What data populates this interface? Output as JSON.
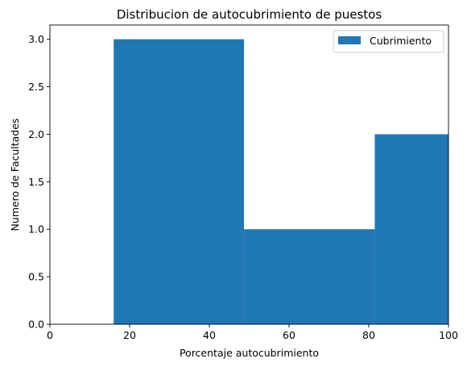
{
  "chart_data": {
    "type": "bar",
    "title": "Distribucion de autocubrimiento de puestos",
    "xlabel": "Porcentaje autocubrimiento",
    "ylabel": "Numero de Facultades",
    "xlim": [
      0,
      100
    ],
    "ylim": [
      0,
      3.15
    ],
    "xticks": [
      0,
      20,
      40,
      60,
      80,
      100
    ],
    "xtick_labels": [
      "0",
      "20",
      "40",
      "60",
      "80",
      "100"
    ],
    "yticks": [
      0.0,
      0.5,
      1.0,
      1.5,
      2.0,
      2.5,
      3.0
    ],
    "ytick_labels": [
      "0.0",
      "0.5",
      "1.0",
      "1.5",
      "2.0",
      "2.5",
      "3.0"
    ],
    "legend_position": "top-right",
    "grid": false,
    "series": [
      {
        "name": "Cubrimiento",
        "color": "#1f77b4",
        "bins": [
          {
            "x0": 16,
            "x1": 48.7,
            "value": 3
          },
          {
            "x0": 48.7,
            "x1": 81.5,
            "value": 1
          },
          {
            "x0": 81.5,
            "x1": 114.2,
            "value": 2
          }
        ]
      }
    ]
  }
}
